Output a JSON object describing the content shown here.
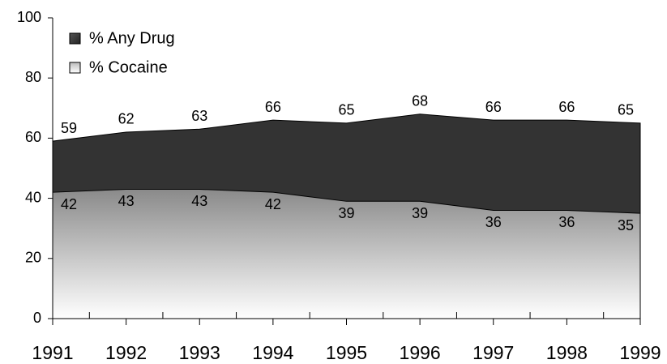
{
  "chart_data": {
    "type": "area",
    "categories": [
      "1991",
      "1992",
      "1993",
      "1994",
      "1995",
      "1996",
      "1997",
      "1998",
      "1999"
    ],
    "series": [
      {
        "name": "% Any Drug",
        "color": "#333333",
        "values": [
          59,
          62,
          63,
          66,
          65,
          68,
          66,
          66,
          65
        ]
      },
      {
        "name": "% Cocaine",
        "color": "#8a8a8a",
        "values": [
          42,
          43,
          43,
          42,
          39,
          39,
          36,
          36,
          35
        ]
      }
    ],
    "ylim": [
      0,
      100
    ],
    "yticks": [
      0,
      20,
      40,
      60,
      80,
      100
    ],
    "grid": false,
    "legend": "top-left"
  }
}
